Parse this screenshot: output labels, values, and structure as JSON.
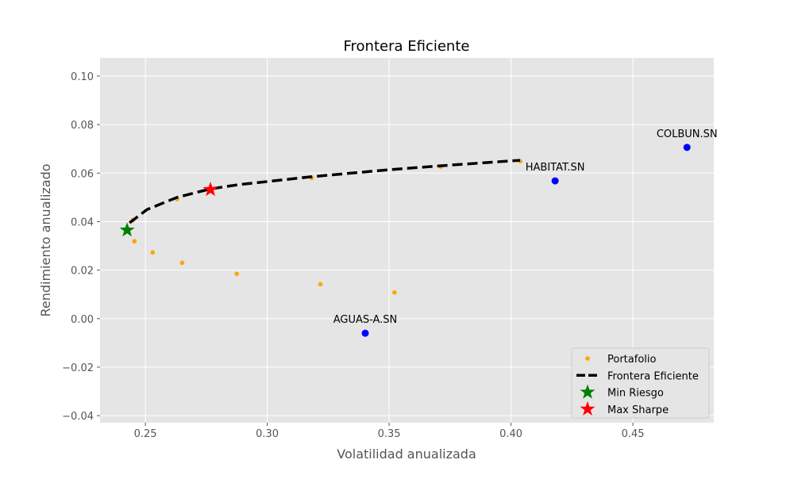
{
  "chart_data": {
    "type": "scatter",
    "title": "Frontera Eficiente",
    "xlabel": "Volatilidad anualizada",
    "ylabel": "Rendimiento anualizado",
    "xlim": [
      0.2314,
      0.4832
    ],
    "ylim": [
      -0.0429,
      0.1075
    ],
    "xticks": [
      "0.25",
      "0.30",
      "0.35",
      "0.40",
      "0.45"
    ],
    "xtick_values": [
      0.25,
      0.3,
      0.35,
      0.4,
      0.45
    ],
    "yticks": [
      "−0.04",
      "−0.02",
      "0.00",
      "0.02",
      "0.04",
      "0.06",
      "0.08",
      "0.10"
    ],
    "ytick_values": [
      -0.04,
      -0.02,
      0.0,
      0.02,
      0.04,
      0.06,
      0.08,
      0.1
    ],
    "grid": true,
    "legend_position": "bottom-right",
    "series": [
      {
        "name": "Portafolio",
        "type": "scatter",
        "color": "#FFA500",
        "x": [
          0.2455,
          0.253,
          0.2651,
          0.2875,
          0.3218,
          0.3522,
          0.2448,
          0.263,
          0.3182,
          0.3712,
          0.4038
        ],
        "y": [
          0.0319,
          0.0273,
          0.023,
          0.0185,
          0.0142,
          0.0108,
          0.0406,
          0.0493,
          0.058,
          0.0626,
          0.0649
        ]
      },
      {
        "name": "Frontera Eficiente",
        "type": "line",
        "style": "dashed",
        "color": "#000000",
        "x": [
          0.2435,
          0.2507,
          0.263,
          0.2767,
          0.288,
          0.318,
          0.35,
          0.371,
          0.4037
        ],
        "y": [
          0.0395,
          0.045,
          0.05,
          0.0535,
          0.0552,
          0.0585,
          0.0614,
          0.063,
          0.0653
        ]
      },
      {
        "name": "Min Riesgo",
        "type": "star",
        "color": "#008000",
        "x": [
          0.2425
        ],
        "y": [
          0.0365
        ]
      },
      {
        "name": "Max Sharpe",
        "type": "star",
        "color": "#FF0000",
        "x": [
          0.2767
        ],
        "y": [
          0.0532
        ]
      }
    ],
    "assets": [
      {
        "label": "COLBUN.SN",
        "x": 0.4722,
        "y": 0.0706,
        "color": "#0000FF"
      },
      {
        "label": "HABITAT.SN",
        "x": 0.4181,
        "y": 0.0568,
        "color": "#0000FF"
      },
      {
        "label": "AGUAS-A.SN",
        "x": 0.3402,
        "y": -0.006,
        "color": "#0000FF"
      }
    ]
  }
}
